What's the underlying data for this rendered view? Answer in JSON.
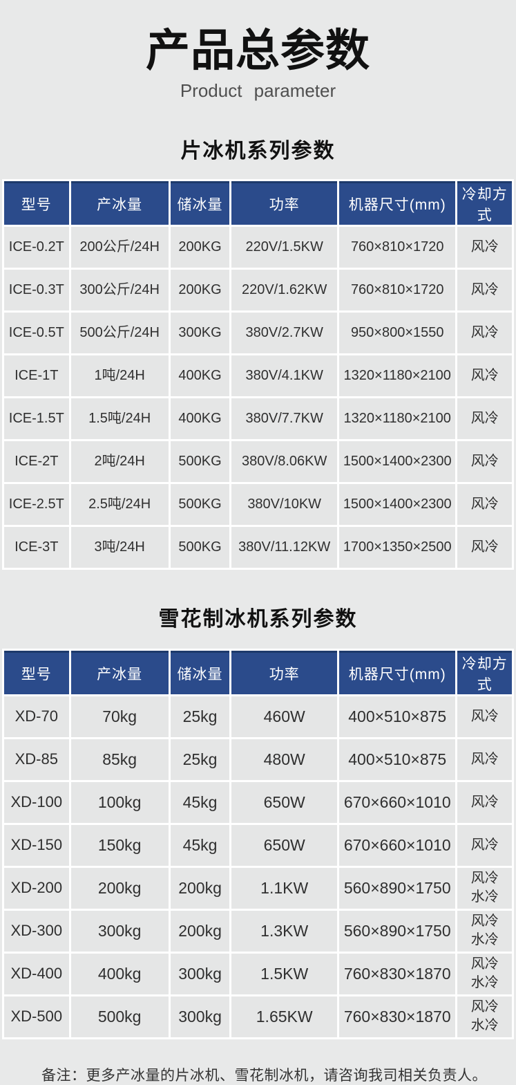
{
  "page": {
    "title": "产品总参数",
    "subtitle": "Product parameter",
    "note": "备注：更多产冰量的片冰机、雪花制冰机，请咨询我司相关负责人。"
  },
  "colors": {
    "header_bg": "#2b4b8b",
    "header_top_border": "#1d3a6b",
    "header_text": "#ffffff",
    "page_bg": "#e8e9e9",
    "cell_bg": "#e5e6e6",
    "separator": "#ffffff",
    "body_text": "#2f2f2f"
  },
  "columns": [
    "型号",
    "产冰量",
    "储冰量",
    "功率",
    "机器尺寸(mm)",
    "冷却方式"
  ],
  "tables": [
    {
      "section_title": "片冰机系列参数",
      "rows": [
        [
          "ICE-0.2T",
          "200公斤/24H",
          "200KG",
          "220V/1.5KW",
          "760×810×1720",
          "风冷"
        ],
        [
          "ICE-0.3T",
          "300公斤/24H",
          "200KG",
          "220V/1.62KW",
          "760×810×1720",
          "风冷"
        ],
        [
          "ICE-0.5T",
          "500公斤/24H",
          "300KG",
          "380V/2.7KW",
          "950×800×1550",
          "风冷"
        ],
        [
          "ICE-1T",
          "1吨/24H",
          "400KG",
          "380V/4.1KW",
          "1320×1180×2100",
          "风冷"
        ],
        [
          "ICE-1.5T",
          "1.5吨/24H",
          "400KG",
          "380V/7.7KW",
          "1320×1180×2100",
          "风冷"
        ],
        [
          "ICE-2T",
          "2吨/24H",
          "500KG",
          "380V/8.06KW",
          "1500×1400×2300",
          "风冷"
        ],
        [
          "ICE-2.5T",
          "2.5吨/24H",
          "500KG",
          "380V/10KW",
          "1500×1400×2300",
          "风冷"
        ],
        [
          "ICE-3T",
          "3吨/24H",
          "500KG",
          "380V/11.12KW",
          "1700×1350×2500",
          "风冷"
        ]
      ]
    },
    {
      "section_title": "雪花制冰机系列参数",
      "rows": [
        [
          "XD-70",
          "70kg",
          "25kg",
          "460W",
          "400×510×875",
          "风冷"
        ],
        [
          "XD-85",
          "85kg",
          "25kg",
          "480W",
          "400×510×875",
          "风冷"
        ],
        [
          "XD-100",
          "100kg",
          "45kg",
          "650W",
          "670×660×1010",
          "风冷"
        ],
        [
          "XD-150",
          "150kg",
          "45kg",
          "650W",
          "670×660×1010",
          "风冷"
        ],
        [
          "XD-200",
          "200kg",
          "200kg",
          "1.1KW",
          "560×890×1750",
          "风冷\n水冷"
        ],
        [
          "XD-300",
          "300kg",
          "200kg",
          "1.3KW",
          "560×890×1750",
          "风冷\n水冷"
        ],
        [
          "XD-400",
          "400kg",
          "300kg",
          "1.5KW",
          "760×830×1870",
          "风冷\n水冷"
        ],
        [
          "XD-500",
          "500kg",
          "300kg",
          "1.65KW",
          "760×830×1870",
          "风冷\n水冷"
        ]
      ]
    }
  ]
}
